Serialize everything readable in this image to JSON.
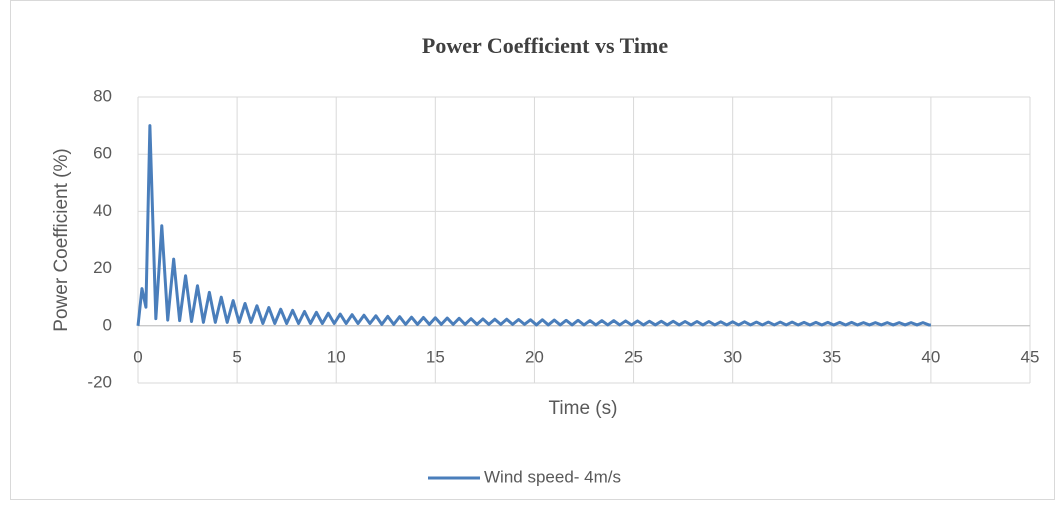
{
  "chart_data": {
    "type": "line",
    "title": "Power Coefficient vs Time",
    "xlabel": "Time (s)",
    "ylabel": "Power Coefficient (%)",
    "xlim": [
      0,
      45
    ],
    "xticks": [
      0,
      5,
      10,
      15,
      20,
      25,
      30,
      35,
      40,
      45
    ],
    "ylim": [
      -20,
      80
    ],
    "yticks": [
      -20,
      0,
      20,
      40,
      60,
      80
    ],
    "grid": true,
    "legend": "bottom",
    "x": [
      0,
      0.2,
      0.4,
      0.6,
      0.9,
      1.2,
      1.5,
      1.8,
      2.1,
      2.4,
      2.7,
      3,
      3.3,
      3.6,
      3.9,
      4.2,
      4.5,
      4.8,
      5.1,
      5.4,
      5.7,
      6,
      6.3,
      6.6,
      6.9,
      7.2,
      7.5,
      7.8,
      8.1,
      8.4,
      8.7,
      9,
      9.3,
      9.6,
      9.9,
      10.2,
      10.5,
      10.8,
      11.1,
      11.4,
      11.7,
      12,
      12.3,
      12.6,
      12.9,
      13.2,
      13.5,
      13.8,
      14.1,
      14.4,
      14.7,
      15,
      15.3,
      15.6,
      15.9,
      16.2,
      16.5,
      16.8,
      17.1,
      17.4,
      17.7,
      18,
      18.3,
      18.6,
      18.9,
      19.2,
      19.5,
      19.8,
      20.1,
      20.4,
      20.7,
      21,
      21.3,
      21.6,
      21.9,
      22.2,
      22.5,
      22.8,
      23.1,
      23.4,
      23.7,
      24,
      24.3,
      24.6,
      24.9,
      25.2,
      25.5,
      25.8,
      26.1,
      26.4,
      26.7,
      27,
      27.3,
      27.6,
      27.9,
      28.2,
      28.5,
      28.8,
      29.1,
      29.4,
      29.7,
      30,
      30.3,
      30.6,
      30.9,
      31.2,
      31.5,
      31.8,
      32.1,
      32.4,
      32.7,
      33,
      33.3,
      33.6,
      33.9,
      34.2,
      34.5,
      34.8,
      35.1,
      35.4,
      35.7,
      36,
      36.3,
      36.6,
      36.9,
      37.2,
      37.5,
      37.8,
      38.1,
      38.4,
      38.7,
      39,
      39.3,
      39.6,
      39.9,
      40
    ],
    "series": [
      {
        "name": "Wind speed- 4m/s",
        "color": "#4a7ebb",
        "values": [
          0,
          13,
          6.5,
          70,
          2.5,
          35,
          2,
          23.3,
          1.8,
          17.5,
          1.5,
          14,
          1.2,
          11.7,
          1.2,
          10,
          1.2,
          8.8,
          1.2,
          7.8,
          1.2,
          7,
          0.8,
          6.4,
          0.8,
          5.8,
          0.8,
          5.4,
          0.8,
          5,
          0.8,
          4.7,
          0.8,
          4.4,
          0.8,
          4.1,
          0.8,
          3.9,
          0.8,
          3.7,
          0.8,
          3.5,
          0.5,
          3.3,
          0.5,
          3.2,
          0.5,
          3,
          0.5,
          2.9,
          0.5,
          2.8,
          0.5,
          2.7,
          0.5,
          2.6,
          0.5,
          2.5,
          0.5,
          2.4,
          0.5,
          2.3,
          0.5,
          2.3,
          0.5,
          2.2,
          0.5,
          2.1,
          0.3,
          2.1,
          0.3,
          2,
          0.3,
          1.9,
          0.3,
          1.9,
          0.3,
          1.8,
          0.3,
          1.8,
          0.3,
          1.8,
          0.3,
          1.7,
          0.3,
          1.7,
          0.3,
          1.6,
          0.3,
          1.6,
          0.3,
          1.6,
          0.3,
          1.5,
          0.3,
          1.5,
          0.3,
          1.5,
          0.3,
          1.4,
          0.3,
          1.4,
          0.3,
          1.4,
          0.3,
          1.3,
          0.3,
          1.3,
          0.3,
          1.3,
          0.3,
          1.3,
          0.3,
          1.2,
          0.3,
          1.2,
          0.3,
          1.2,
          0.3,
          1.2,
          0.3,
          1.2,
          0.3,
          1.1,
          0.3,
          1.1,
          0.3,
          1.1,
          0.3,
          1.1,
          0.3,
          1.1,
          0.3,
          1.1,
          0.3,
          0.3
        ]
      }
    ]
  }
}
